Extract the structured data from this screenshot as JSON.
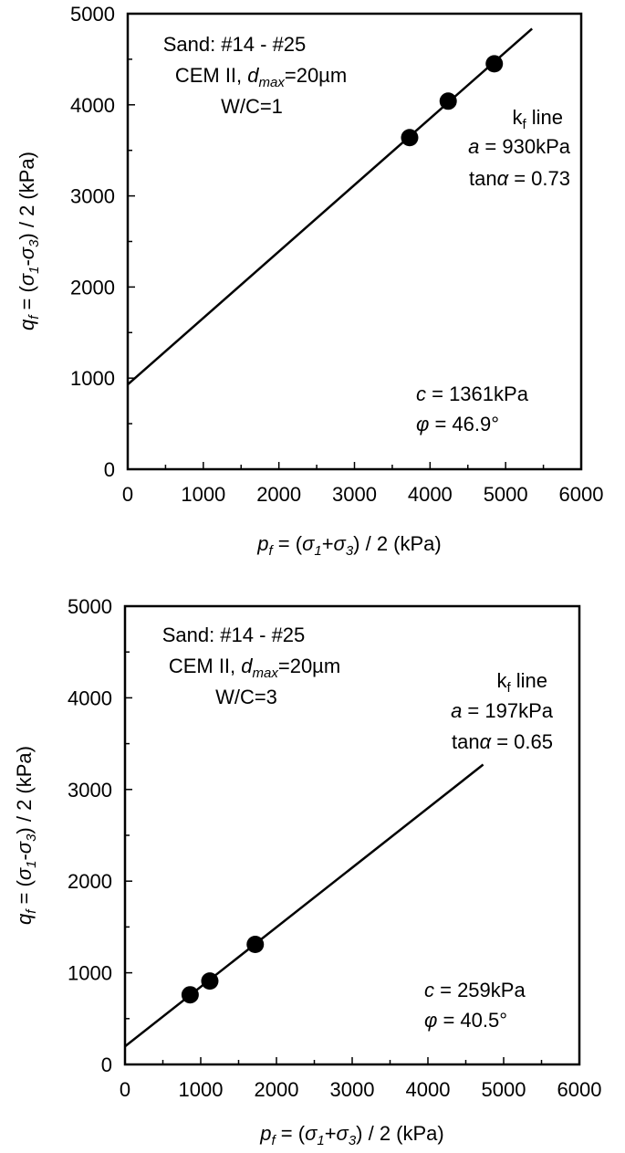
{
  "chart_data": [
    {
      "type": "scatter",
      "xlim": [
        0,
        6000
      ],
      "ylim": [
        0,
        5000
      ],
      "x_ticks": [
        "0",
        "1000",
        "2000",
        "3000",
        "4000",
        "5000",
        "6000"
      ],
      "y_ticks": [
        "0",
        "1000",
        "2000",
        "3000",
        "4000",
        "5000"
      ],
      "xlabel": {
        "p": "p",
        "f": "f",
        "rest1": " = (",
        "s1": "σ",
        "sub1": "1",
        "plus": "+",
        "s3": "σ",
        "sub3": "3",
        "rest2": ") / 2 (kPa)"
      },
      "ylabel": {
        "q": "q",
        "f": "f",
        "rest1": " = (",
        "s1": "σ",
        "sub1": "1",
        "minus": "-",
        "s3": "σ",
        "sub3": "3",
        "rest2": ") / 2 (kPa)"
      },
      "points": [
        {
          "x": 3730,
          "y": 3640
        },
        {
          "x": 4240,
          "y": 4040
        },
        {
          "x": 4850,
          "y": 4450
        }
      ],
      "fit_line": {
        "intercept": 930,
        "slope": 0.73,
        "x_range": [
          0,
          5350
        ]
      },
      "legend_left": {
        "line1": "Sand: #14 - #25",
        "line2_pre": "CEM II, ",
        "line2_d": "d",
        "line2_sub": "max",
        "line2_post": "=20µm",
        "line3": "W/C=1"
      },
      "legend_right": {
        "k": "k",
        "k_sub": "f",
        "k_post": " line",
        "a_sym": "a",
        "a_val": " = 930kPa",
        "tan_pre": "tan",
        "tan_sym": "α",
        "tan_val": " = 0.73"
      },
      "legend_bottom": {
        "c_sym": "c",
        "c_val": " = 1361kPa",
        "phi_sym": "φ",
        "phi_val": " = 46.9°"
      }
    },
    {
      "type": "scatter",
      "xlim": [
        0,
        6000
      ],
      "ylim": [
        0,
        5000
      ],
      "x_ticks": [
        "0",
        "1000",
        "2000",
        "3000",
        "4000",
        "5000",
        "6000"
      ],
      "y_ticks": [
        "0",
        "1000",
        "2000",
        "3000",
        "4000",
        "5000"
      ],
      "xlabel": {
        "p": "p",
        "f": "f",
        "rest1": " = (",
        "s1": "σ",
        "sub1": "1",
        "plus": "+",
        "s3": "σ",
        "sub3": "3",
        "rest2": ") / 2 (kPa)"
      },
      "ylabel": {
        "q": "q",
        "f": "f",
        "rest1": " = (",
        "s1": "σ",
        "sub1": "1",
        "minus": "-",
        "s3": "σ",
        "sub3": "3",
        "rest2": ") / 2 (kPa)"
      },
      "points": [
        {
          "x": 860,
          "y": 760
        },
        {
          "x": 1120,
          "y": 910
        },
        {
          "x": 1720,
          "y": 1310
        }
      ],
      "fit_line": {
        "intercept": 197,
        "slope": 0.65,
        "x_range": [
          0,
          4730
        ]
      },
      "legend_left": {
        "line1": "Sand: #14 - #25",
        "line2_pre": "CEM II, ",
        "line2_d": "d",
        "line2_sub": "max",
        "line2_post": "=20µm",
        "line3": "W/C=3"
      },
      "legend_right": {
        "k": "k",
        "k_sub": "f",
        "k_post": " line",
        "a_sym": "a",
        "a_val": " = 197kPa",
        "tan_pre": "tan",
        "tan_sym": "α",
        "tan_val": " = 0.65"
      },
      "legend_bottom": {
        "c_sym": "c",
        "c_val": " = 259kPa",
        "phi_sym": "φ",
        "phi_val": " = 40.5°"
      }
    }
  ]
}
